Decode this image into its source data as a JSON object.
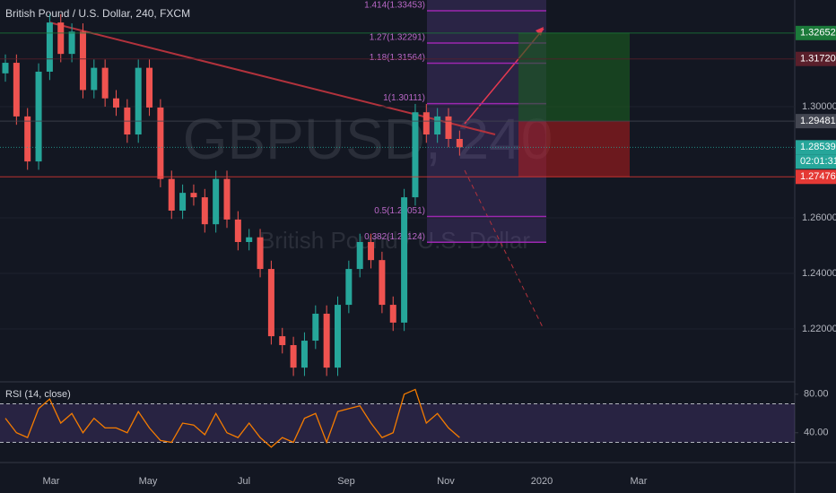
{
  "chart_data": [
    {
      "type": "candlestick",
      "title": "British Pound / U.S. Dollar, 240, FXCM",
      "watermark": "GBPUSD, 240",
      "watermark_subtitle": "British Pound / U.S. Dollar",
      "up_color": "#26a69a",
      "down_color": "#ef5350",
      "open": [
        1.312,
        1.3158,
        1.2965,
        1.2803,
        1.3126,
        1.3303,
        1.319,
        1.327,
        1.306,
        1.314,
        1.303,
        1.2997,
        1.29,
        1.314,
        1.2997,
        1.274,
        1.2626,
        1.269,
        1.2674,
        1.2577,
        1.274,
        1.2594,
        1.2513,
        1.253,
        1.2416,
        1.2174,
        1.2142,
        1.2061,
        1.2158,
        1.2255,
        1.2061,
        1.2287,
        1.2416,
        1.2513,
        1.2448,
        1.2287,
        1.2223,
        1.2674,
        1.298,
        1.29,
        1.2965,
        1.2884
      ],
      "high": [
        1.3188,
        1.3188,
        1.2995,
        1.3156,
        1.3333,
        1.3333,
        1.33,
        1.33,
        1.317,
        1.317,
        1.306,
        1.3027,
        1.317,
        1.317,
        1.3027,
        1.277,
        1.272,
        1.272,
        1.2704,
        1.277,
        1.277,
        1.2624,
        1.256,
        1.256,
        1.2446,
        1.2204,
        1.2172,
        1.2188,
        1.2285,
        1.2285,
        1.2317,
        1.2446,
        1.2543,
        1.2543,
        1.2478,
        1.2317,
        1.2704,
        1.301,
        1.301,
        1.2995,
        1.2995,
        1.2914
      ],
      "low": [
        1.309,
        1.2935,
        1.2773,
        1.2773,
        1.3096,
        1.316,
        1.316,
        1.303,
        1.303,
        1.3,
        1.2967,
        1.287,
        1.287,
        1.2967,
        1.271,
        1.2596,
        1.2596,
        1.2644,
        1.2547,
        1.2547,
        1.2564,
        1.2483,
        1.2483,
        1.2386,
        1.2144,
        1.2112,
        1.2031,
        1.2031,
        1.2128,
        1.2031,
        1.2031,
        1.2257,
        1.2386,
        1.2418,
        1.2257,
        1.2193,
        1.2193,
        1.2644,
        1.287,
        1.287,
        1.2854,
        1.2824
      ],
      "close": [
        1.3158,
        1.2965,
        1.2803,
        1.3126,
        1.3303,
        1.319,
        1.327,
        1.306,
        1.314,
        1.303,
        1.2997,
        1.29,
        1.314,
        1.2997,
        1.274,
        1.2626,
        1.269,
        1.2674,
        1.2577,
        1.274,
        1.2594,
        1.2513,
        1.253,
        1.2416,
        1.2174,
        1.2142,
        1.2061,
        1.2158,
        1.2255,
        1.2061,
        1.2287,
        1.2416,
        1.2513,
        1.2448,
        1.2287,
        1.2223,
        1.2674,
        1.298,
        1.29,
        1.2965,
        1.2884,
        1.2854
      ],
      "ylim": [
        1.2013,
        1.3384
      ],
      "yticks": [
        {
          "value": 1.22,
          "label": "1.22000"
        },
        {
          "value": 1.24,
          "label": "1.24000"
        },
        {
          "value": 1.26,
          "label": "1.26000"
        },
        {
          "value": 1.3,
          "label": "1.30000"
        }
      ],
      "price_labels": [
        1.32652,
        {
          "value": 1.3172,
          "label": "1.31720"
        },
        1.29481,
        1.28539,
        1.27476
      ],
      "price_label_colors": [
        "#1b7a3a",
        "#5a1f2b",
        "#434651",
        "#26a69a",
        "#e53935"
      ],
      "countdown": "02:01:31",
      "fib_levels": [
        {
          "value": 1.33453,
          "label": "1.414(1.33453)"
        },
        {
          "value": 1.32291,
          "label": "1.27(1.32291)"
        },
        {
          "value": 1.31564,
          "label": "1.18(1.31564)"
        },
        {
          "value": 1.30111,
          "label": "1(1.30111)"
        },
        {
          "value": 1.26051,
          "label": "0.5(1.26051)"
        },
        {
          "value": 1.25124,
          "label": "0.382(1.25124)"
        }
      ],
      "time_labels": [
        "Mar",
        "May",
        "Jul",
        "Sep",
        "Nov",
        "2020",
        "Mar"
      ]
    },
    {
      "type": "line",
      "title": "RSI (14, close)",
      "color": "#f57c00",
      "values": [
        55,
        40,
        35,
        65,
        75,
        50,
        60,
        40,
        55,
        45,
        45,
        40,
        62,
        45,
        32,
        30,
        50,
        48,
        38,
        60,
        40,
        35,
        50,
        35,
        25,
        35,
        30,
        55,
        60,
        30,
        62,
        65,
        68,
        50,
        35,
        40,
        80,
        85,
        50,
        60,
        45,
        35
      ],
      "bands": [
        70,
        30
      ],
      "ylim": [
        10,
        91
      ],
      "yticks": [
        {
          "value": 80,
          "label": "80.00"
        },
        {
          "value": 40,
          "label": "40.00"
        }
      ]
    }
  ]
}
